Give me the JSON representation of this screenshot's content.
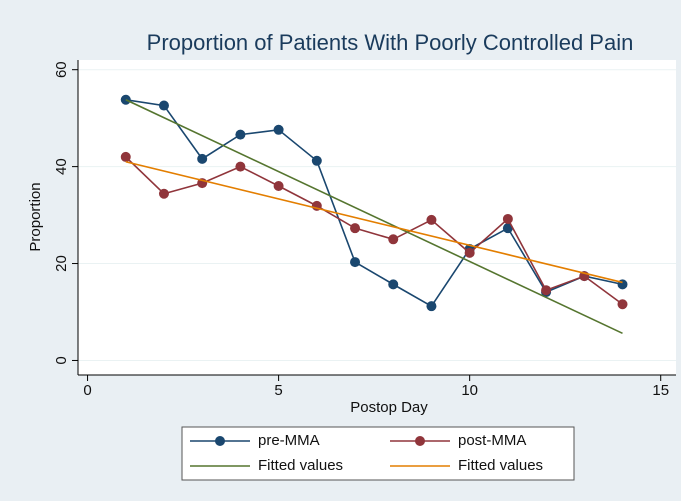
{
  "chart_data": {
    "type": "line",
    "title": "Proportion of Patients With Poorly Controlled Pain",
    "x_label": "Postop Day",
    "y_label": "Proportion",
    "xlim": [
      -0.25,
      15.4
    ],
    "xticks": [
      0,
      5,
      10,
      15
    ],
    "ylim": [
      -3,
      62
    ],
    "yticks": [
      0,
      20,
      40,
      60
    ],
    "grid": true,
    "legend": "bottom",
    "series": [
      {
        "name": "pre-MMA",
        "color": "#1a476f",
        "marker": true,
        "x": [
          1,
          2,
          3,
          4,
          5,
          6,
          7,
          8,
          9,
          10,
          11,
          12,
          13,
          14
        ],
        "values": [
          53.8,
          52.6,
          41.6,
          46.6,
          47.6,
          41.2,
          20.3,
          15.7,
          11.2,
          23,
          27.3,
          14.1,
          17.4,
          15.7
        ]
      },
      {
        "name": "post-MMA",
        "color": "#90353b",
        "marker": true,
        "x": [
          1,
          2,
          3,
          4,
          5,
          6,
          7,
          8,
          9,
          10,
          11,
          12,
          13,
          14
        ],
        "values": [
          42,
          34.4,
          36.6,
          40,
          36,
          31.9,
          27.3,
          25,
          29,
          22.2,
          29.2,
          14.5,
          17.4,
          11.6
        ]
      },
      {
        "name": "Fitted values",
        "color": "#55752f",
        "marker": false,
        "x": [
          1,
          14
        ],
        "values": [
          53.8,
          5.6
        ]
      },
      {
        "name": "Fitted values",
        "color": "#e37e00",
        "marker": false,
        "x": [
          1,
          14
        ],
        "values": [
          41,
          16.1
        ]
      }
    ]
  }
}
